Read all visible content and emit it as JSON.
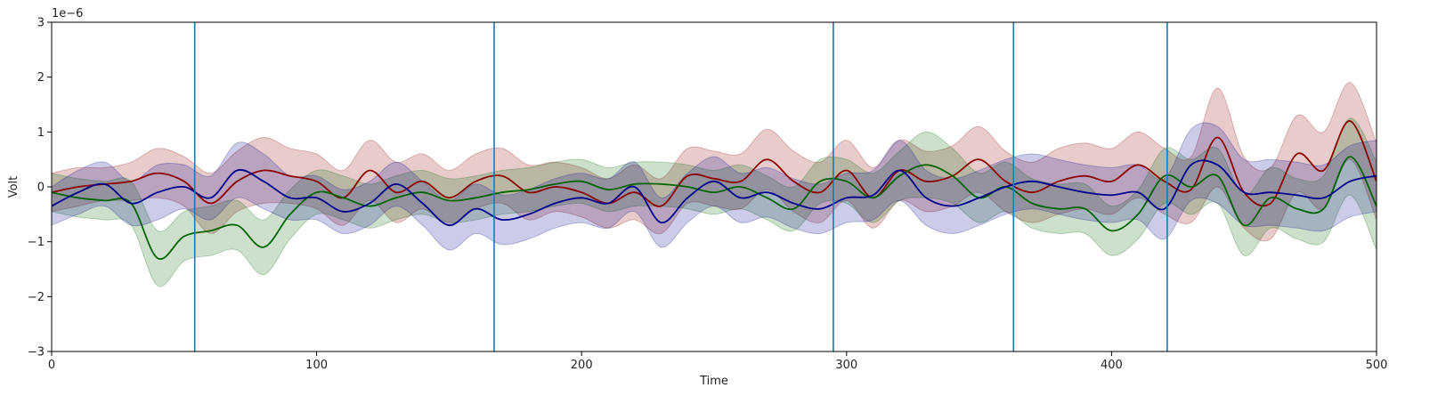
{
  "chart_data": {
    "type": "line",
    "title": "",
    "xlabel": "Time",
    "ylabel": "Volt",
    "offset_text": "1e−6",
    "xlim": [
      0,
      500
    ],
    "ylim": [
      -3,
      3
    ],
    "xticks": [
      0,
      100,
      200,
      300,
      400,
      500
    ],
    "xtick_labels": [
      "0",
      "100",
      "200",
      "300",
      "400",
      "500"
    ],
    "yticks": [
      -3,
      -2,
      -1,
      0,
      1,
      2,
      3
    ],
    "ytick_labels": [
      "−3",
      "−2",
      "−1",
      "0",
      "1",
      "2",
      "3"
    ],
    "grid": false,
    "legend": "none",
    "vlines": {
      "color": "#1f77b4",
      "x": [
        54,
        167,
        295,
        363,
        421
      ]
    },
    "series": [
      {
        "color": "#8b0000",
        "x": [
          0,
          10,
          20,
          30,
          40,
          50,
          60,
          70,
          80,
          90,
          100,
          110,
          120,
          130,
          140,
          150,
          160,
          170,
          180,
          190,
          200,
          210,
          220,
          230,
          240,
          250,
          260,
          270,
          280,
          290,
          300,
          310,
          320,
          330,
          340,
          350,
          360,
          370,
          380,
          390,
          400,
          410,
          420,
          430,
          440,
          450,
          460,
          470,
          480,
          490,
          500
        ],
        "y": [
          -0.1,
          0.0,
          0.05,
          0.1,
          0.25,
          0.1,
          -0.3,
          0.1,
          0.3,
          0.2,
          0.1,
          -0.2,
          0.3,
          -0.1,
          0.1,
          -0.2,
          0.1,
          0.2,
          -0.1,
          0.0,
          -0.1,
          -0.3,
          -0.1,
          -0.35,
          0.2,
          0.15,
          0.1,
          0.5,
          0.1,
          -0.1,
          0.3,
          -0.2,
          0.3,
          0.1,
          0.2,
          0.5,
          0.1,
          -0.1,
          0.1,
          0.2,
          0.1,
          0.4,
          0.1,
          -0.05,
          0.9,
          -0.1,
          -0.3,
          0.6,
          0.3,
          1.2,
          0.1
        ],
        "band": [
          0.35,
          0.35,
          0.3,
          0.35,
          0.45,
          0.45,
          0.55,
          0.55,
          0.6,
          0.5,
          0.5,
          0.5,
          0.55,
          0.55,
          0.5,
          0.5,
          0.5,
          0.5,
          0.5,
          0.45,
          0.45,
          0.45,
          0.5,
          0.5,
          0.5,
          0.5,
          0.5,
          0.55,
          0.55,
          0.55,
          0.55,
          0.55,
          0.55,
          0.55,
          0.55,
          0.6,
          0.55,
          0.55,
          0.6,
          0.6,
          0.6,
          0.6,
          0.6,
          0.6,
          0.9,
          0.65,
          0.65,
          0.7,
          0.7,
          0.7,
          0.7
        ]
      },
      {
        "color": "#006400",
        "x": [
          0,
          10,
          20,
          30,
          40,
          50,
          60,
          70,
          80,
          90,
          100,
          110,
          120,
          130,
          140,
          150,
          160,
          170,
          180,
          190,
          200,
          210,
          220,
          230,
          240,
          250,
          260,
          270,
          280,
          290,
          300,
          310,
          320,
          330,
          340,
          350,
          360,
          370,
          380,
          390,
          400,
          410,
          420,
          430,
          440,
          450,
          460,
          470,
          480,
          490,
          500
        ],
        "y": [
          -0.1,
          -0.2,
          -0.25,
          -0.3,
          -1.3,
          -0.9,
          -0.8,
          -0.7,
          -1.1,
          -0.5,
          -0.1,
          -0.2,
          -0.35,
          -0.2,
          -0.1,
          -0.25,
          -0.2,
          -0.1,
          -0.05,
          0.05,
          0.1,
          -0.05,
          0.05,
          0.05,
          0.0,
          -0.1,
          0.0,
          -0.2,
          -0.4,
          0.1,
          0.1,
          -0.2,
          0.2,
          0.4,
          0.2,
          -0.2,
          0.0,
          -0.3,
          -0.4,
          -0.4,
          -0.8,
          -0.5,
          0.2,
          0.0,
          0.2,
          -0.7,
          -0.2,
          -0.4,
          -0.4,
          0.55,
          -0.35
        ],
        "band": [
          0.35,
          0.35,
          0.35,
          0.4,
          0.5,
          0.45,
          0.45,
          0.45,
          0.5,
          0.45,
          0.4,
          0.4,
          0.4,
          0.4,
          0.4,
          0.4,
          0.4,
          0.4,
          0.4,
          0.4,
          0.4,
          0.4,
          0.4,
          0.4,
          0.4,
          0.4,
          0.4,
          0.4,
          0.4,
          0.4,
          0.4,
          0.45,
          0.45,
          0.6,
          0.5,
          0.45,
          0.45,
          0.45,
          0.45,
          0.45,
          0.45,
          0.45,
          0.5,
          0.5,
          0.5,
          0.55,
          0.55,
          0.55,
          0.6,
          0.7,
          0.8
        ]
      },
      {
        "color": "#00008b",
        "x": [
          0,
          10,
          20,
          30,
          40,
          50,
          60,
          70,
          80,
          90,
          100,
          110,
          120,
          130,
          140,
          150,
          160,
          170,
          180,
          190,
          200,
          210,
          220,
          230,
          240,
          250,
          260,
          270,
          280,
          290,
          300,
          310,
          320,
          330,
          340,
          350,
          360,
          370,
          380,
          390,
          400,
          410,
          420,
          430,
          440,
          450,
          460,
          470,
          480,
          490,
          500
        ],
        "y": [
          -0.35,
          -0.1,
          0.05,
          -0.3,
          -0.1,
          0.0,
          -0.2,
          0.3,
          0.1,
          -0.2,
          -0.2,
          -0.45,
          -0.3,
          0.05,
          -0.3,
          -0.7,
          -0.4,
          -0.6,
          -0.5,
          -0.3,
          -0.2,
          -0.3,
          0.0,
          -0.65,
          -0.2,
          0.1,
          -0.2,
          -0.1,
          -0.3,
          -0.4,
          -0.2,
          -0.15,
          0.3,
          -0.2,
          -0.35,
          -0.2,
          0.0,
          0.1,
          0.0,
          -0.1,
          -0.15,
          -0.1,
          -0.4,
          0.4,
          0.4,
          -0.1,
          -0.1,
          -0.15,
          -0.2,
          0.1,
          0.2
        ],
        "band": [
          0.35,
          0.4,
          0.4,
          0.4,
          0.5,
          0.4,
          0.4,
          0.5,
          0.5,
          0.4,
          0.4,
          0.4,
          0.4,
          0.4,
          0.4,
          0.45,
          0.45,
          0.45,
          0.45,
          0.45,
          0.45,
          0.45,
          0.45,
          0.45,
          0.45,
          0.45,
          0.45,
          0.45,
          0.45,
          0.45,
          0.45,
          0.45,
          0.55,
          0.5,
          0.5,
          0.5,
          0.5,
          0.5,
          0.5,
          0.5,
          0.5,
          0.5,
          0.55,
          0.65,
          0.7,
          0.6,
          0.6,
          0.6,
          0.6,
          0.65,
          0.65
        ]
      }
    ]
  }
}
